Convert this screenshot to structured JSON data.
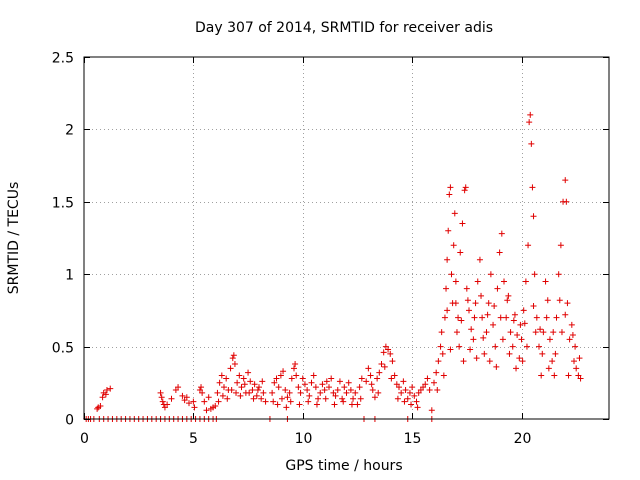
{
  "chart_data": {
    "type": "scatter",
    "title": "Day 307 of 2014, SRMTID for receiver adis",
    "xlabel": "GPS time / hours",
    "ylabel": "SRMTID / TECUs",
    "xlim": [
      0,
      24
    ],
    "ylim": [
      0,
      2.5
    ],
    "xticks": [
      0,
      5,
      10,
      15,
      20
    ],
    "yticks": [
      0,
      0.5,
      1,
      1.5,
      2,
      2.5
    ],
    "xtick_labels": [
      "0",
      "5",
      "10",
      "15",
      "20"
    ],
    "ytick_labels": [
      "0",
      "0.5",
      "1",
      "1.5",
      "2",
      "2.5"
    ],
    "grid": true,
    "marker": "+",
    "series": [
      {
        "name": "SRMTID",
        "color": "#e00000",
        "points": [
          [
            0.1,
            0
          ],
          [
            0.2,
            0
          ],
          [
            0.3,
            0
          ],
          [
            0.45,
            0
          ],
          [
            0.6,
            0.07
          ],
          [
            0.65,
            0.08
          ],
          [
            0.75,
            0.09
          ],
          [
            0.85,
            0.15
          ],
          [
            0.9,
            0.18
          ],
          [
            1.0,
            0.17
          ],
          [
            1.05,
            0.2
          ],
          [
            1.2,
            0.21
          ],
          [
            0.7,
            0
          ],
          [
            0.9,
            0
          ],
          [
            1.1,
            0
          ],
          [
            1.3,
            0
          ],
          [
            1.5,
            0
          ],
          [
            1.7,
            0
          ],
          [
            1.9,
            0
          ],
          [
            2.1,
            0
          ],
          [
            2.3,
            0
          ],
          [
            2.5,
            0
          ],
          [
            2.7,
            0
          ],
          [
            2.9,
            0
          ],
          [
            3.1,
            0
          ],
          [
            3.3,
            0
          ],
          [
            3.5,
            0
          ],
          [
            3.7,
            0
          ],
          [
            3.9,
            0
          ],
          [
            4.1,
            0
          ],
          [
            4.3,
            0
          ],
          [
            4.5,
            0
          ],
          [
            4.7,
            0
          ],
          [
            4.9,
            0
          ],
          [
            5.1,
            0
          ],
          [
            5.3,
            0
          ],
          [
            5.5,
            0
          ],
          [
            5.7,
            0
          ],
          [
            5.9,
            0
          ],
          [
            6.05,
            0
          ],
          [
            8.5,
            0
          ],
          [
            9.3,
            0
          ],
          [
            12.8,
            0
          ],
          [
            13.3,
            0
          ],
          [
            14.8,
            0
          ],
          [
            15.9,
            0
          ],
          [
            3.5,
            0.18
          ],
          [
            3.55,
            0.15
          ],
          [
            3.6,
            0.12
          ],
          [
            3.65,
            0.1
          ],
          [
            3.7,
            0.08
          ],
          [
            3.8,
            0.1
          ],
          [
            4.0,
            0.14
          ],
          [
            4.2,
            0.2
          ],
          [
            4.3,
            0.22
          ],
          [
            4.5,
            0.16
          ],
          [
            4.6,
            0.13
          ],
          [
            4.7,
            0.15
          ],
          [
            4.8,
            0.11
          ],
          [
            5.0,
            0.12
          ],
          [
            5.05,
            0.08
          ],
          [
            5.3,
            0.2
          ],
          [
            5.35,
            0.22
          ],
          [
            5.4,
            0.18
          ],
          [
            5.5,
            0.12
          ],
          [
            5.6,
            0.06
          ],
          [
            5.7,
            0.15
          ],
          [
            5.8,
            0.07
          ],
          [
            5.9,
            0.08
          ],
          [
            6.0,
            0.09
          ],
          [
            6.1,
            0.18
          ],
          [
            6.2,
            0.25
          ],
          [
            6.3,
            0.3
          ],
          [
            6.4,
            0.22
          ],
          [
            6.5,
            0.28
          ],
          [
            6.6,
            0.2
          ],
          [
            6.7,
            0.35
          ],
          [
            6.8,
            0.42
          ],
          [
            6.85,
            0.44
          ],
          [
            6.9,
            0.38
          ],
          [
            7.0,
            0.25
          ],
          [
            7.1,
            0.3
          ],
          [
            7.2,
            0.22
          ],
          [
            7.3,
            0.28
          ],
          [
            7.4,
            0.18
          ],
          [
            7.5,
            0.32
          ],
          [
            7.6,
            0.26
          ],
          [
            7.7,
            0.2
          ],
          [
            7.8,
            0.24
          ],
          [
            7.9,
            0.16
          ],
          [
            8.0,
            0.22
          ],
          [
            8.1,
            0.14
          ],
          [
            8.2,
            0.18
          ],
          [
            8.3,
            0.12
          ],
          [
            6.15,
            0.12
          ],
          [
            6.35,
            0.16
          ],
          [
            6.55,
            0.14
          ],
          [
            6.75,
            0.2
          ],
          [
            6.95,
            0.18
          ],
          [
            7.15,
            0.16
          ],
          [
            7.35,
            0.24
          ],
          [
            7.55,
            0.18
          ],
          [
            7.75,
            0.14
          ],
          [
            7.95,
            0.2
          ],
          [
            8.15,
            0.26
          ],
          [
            8.6,
            0.18
          ],
          [
            8.7,
            0.25
          ],
          [
            8.8,
            0.28
          ],
          [
            8.9,
            0.22
          ],
          [
            9.0,
            0.3
          ],
          [
            9.1,
            0.33
          ],
          [
            9.2,
            0.2
          ],
          [
            9.3,
            0.15
          ],
          [
            9.4,
            0.18
          ],
          [
            9.5,
            0.28
          ],
          [
            9.6,
            0.35
          ],
          [
            9.65,
            0.38
          ],
          [
            9.7,
            0.3
          ],
          [
            9.8,
            0.22
          ],
          [
            9.9,
            0.18
          ],
          [
            10.0,
            0.28
          ],
          [
            10.1,
            0.24
          ],
          [
            10.2,
            0.2
          ],
          [
            10.3,
            0.16
          ],
          [
            10.4,
            0.25
          ],
          [
            10.5,
            0.3
          ],
          [
            10.6,
            0.22
          ],
          [
            10.7,
            0.14
          ],
          [
            10.8,
            0.18
          ],
          [
            10.9,
            0.24
          ],
          [
            11.0,
            0.2
          ],
          [
            11.1,
            0.26
          ],
          [
            11.2,
            0.22
          ],
          [
            11.3,
            0.28
          ],
          [
            11.4,
            0.18
          ],
          [
            11.5,
            0.16
          ],
          [
            11.6,
            0.2
          ],
          [
            11.7,
            0.26
          ],
          [
            11.8,
            0.14
          ],
          [
            11.9,
            0.22
          ],
          [
            12.0,
            0.18
          ],
          [
            12.1,
            0.25
          ],
          [
            12.2,
            0.2
          ],
          [
            12.3,
            0.14
          ],
          [
            12.4,
            0.18
          ],
          [
            12.5,
            0.1
          ],
          [
            12.6,
            0.22
          ],
          [
            12.7,
            0.28
          ],
          [
            8.65,
            0.12
          ],
          [
            8.85,
            0.1
          ],
          [
            9.05,
            0.14
          ],
          [
            9.25,
            0.08
          ],
          [
            9.45,
            0.12
          ],
          [
            9.85,
            0.1
          ],
          [
            10.25,
            0.12
          ],
          [
            10.65,
            0.1
          ],
          [
            11.05,
            0.14
          ],
          [
            11.45,
            0.1
          ],
          [
            11.85,
            0.12
          ],
          [
            12.25,
            0.1
          ],
          [
            12.65,
            0.14
          ],
          [
            12.9,
            0.26
          ],
          [
            13.0,
            0.35
          ],
          [
            13.1,
            0.3
          ],
          [
            13.2,
            0.2
          ],
          [
            13.3,
            0.15
          ],
          [
            13.4,
            0.28
          ],
          [
            13.5,
            0.32
          ],
          [
            13.6,
            0.38
          ],
          [
            13.7,
            0.46
          ],
          [
            13.8,
            0.5
          ],
          [
            13.9,
            0.48
          ],
          [
            14.0,
            0.45
          ],
          [
            14.1,
            0.4
          ],
          [
            14.2,
            0.3
          ],
          [
            14.3,
            0.24
          ],
          [
            14.4,
            0.22
          ],
          [
            14.5,
            0.18
          ],
          [
            14.6,
            0.26
          ],
          [
            14.7,
            0.2
          ],
          [
            14.8,
            0.14
          ],
          [
            14.9,
            0.18
          ],
          [
            15.0,
            0.22
          ],
          [
            15.1,
            0.16
          ],
          [
            15.2,
            0.12
          ],
          [
            15.3,
            0.18
          ],
          [
            15.4,
            0.2
          ],
          [
            15.5,
            0.22
          ],
          [
            15.6,
            0.24
          ],
          [
            15.7,
            0.28
          ],
          [
            15.8,
            0.2
          ],
          [
            15.9,
            0.06
          ],
          [
            16.0,
            0.25
          ],
          [
            13.15,
            0.24
          ],
          [
            13.45,
            0.18
          ],
          [
            13.75,
            0.36
          ],
          [
            14.05,
            0.28
          ],
          [
            14.35,
            0.14
          ],
          [
            14.65,
            0.12
          ],
          [
            14.95,
            0.1
          ],
          [
            15.25,
            0.08
          ],
          [
            16.1,
            0.32
          ],
          [
            16.2,
            0.4
          ],
          [
            16.3,
            0.5
          ],
          [
            16.35,
            0.6
          ],
          [
            16.4,
            0.45
          ],
          [
            16.5,
            0.7
          ],
          [
            16.55,
            0.9
          ],
          [
            16.6,
            1.1
          ],
          [
            16.65,
            1.3
          ],
          [
            16.7,
            1.55
          ],
          [
            16.75,
            1.6
          ],
          [
            16.8,
            1.0
          ],
          [
            16.85,
            0.8
          ],
          [
            16.9,
            1.2
          ],
          [
            16.95,
            1.42
          ],
          [
            17.0,
            0.95
          ],
          [
            17.05,
            0.6
          ],
          [
            17.1,
            0.7
          ],
          [
            17.2,
            1.15
          ],
          [
            17.3,
            1.35
          ],
          [
            17.4,
            1.58
          ],
          [
            17.45,
            1.6
          ],
          [
            17.5,
            0.9
          ],
          [
            17.6,
            0.75
          ],
          [
            17.7,
            0.62
          ],
          [
            17.8,
            0.55
          ],
          [
            17.9,
            0.8
          ],
          [
            18.0,
            0.95
          ],
          [
            18.1,
            1.1
          ],
          [
            18.2,
            0.7
          ],
          [
            18.3,
            0.45
          ],
          [
            18.4,
            0.6
          ],
          [
            18.5,
            0.8
          ],
          [
            18.6,
            1.0
          ],
          [
            18.7,
            0.65
          ],
          [
            18.8,
            0.5
          ],
          [
            18.9,
            0.9
          ],
          [
            19.0,
            1.15
          ],
          [
            19.1,
            1.28
          ],
          [
            19.2,
            0.95
          ],
          [
            19.3,
            0.7
          ],
          [
            19.4,
            0.85
          ],
          [
            19.5,
            0.6
          ],
          [
            19.6,
            0.5
          ],
          [
            19.7,
            0.72
          ],
          [
            19.8,
            0.58
          ],
          [
            19.9,
            0.42
          ],
          [
            20.0,
            0.55
          ],
          [
            20.1,
            0.75
          ],
          [
            20.2,
            0.95
          ],
          [
            20.3,
            1.2
          ],
          [
            20.35,
            2.05
          ],
          [
            20.4,
            2.1
          ],
          [
            20.45,
            1.9
          ],
          [
            20.5,
            1.6
          ],
          [
            20.55,
            1.4
          ],
          [
            20.6,
            1.0
          ],
          [
            20.7,
            0.7
          ],
          [
            20.8,
            0.5
          ],
          [
            20.9,
            0.3
          ],
          [
            21.0,
            0.6
          ],
          [
            21.1,
            0.95
          ],
          [
            21.2,
            0.82
          ],
          [
            21.3,
            0.55
          ],
          [
            21.4,
            0.4
          ],
          [
            21.5,
            0.3
          ],
          [
            21.6,
            0.7
          ],
          [
            21.7,
            1.0
          ],
          [
            21.8,
            1.2
          ],
          [
            21.9,
            1.5
          ],
          [
            22.0,
            1.65
          ],
          [
            22.05,
            1.5
          ],
          [
            22.1,
            0.8
          ],
          [
            22.2,
            0.55
          ],
          [
            22.3,
            0.65
          ],
          [
            22.4,
            0.4
          ],
          [
            22.5,
            0.35
          ],
          [
            22.6,
            0.3
          ],
          [
            22.7,
            0.28
          ],
          [
            16.15,
            0.2
          ],
          [
            16.45,
            0.3
          ],
          [
            16.75,
            0.48
          ],
          [
            17.15,
            0.5
          ],
          [
            17.35,
            0.4
          ],
          [
            17.65,
            0.48
          ],
          [
            17.95,
            0.42
          ],
          [
            18.25,
            0.56
          ],
          [
            18.55,
            0.4
          ],
          [
            18.85,
            0.36
          ],
          [
            19.15,
            0.55
          ],
          [
            19.45,
            0.45
          ],
          [
            19.75,
            0.35
          ],
          [
            20.05,
            0.4
          ],
          [
            20.25,
            0.5
          ],
          [
            20.65,
            0.6
          ],
          [
            20.95,
            0.45
          ],
          [
            21.25,
            0.35
          ],
          [
            21.55,
            0.45
          ],
          [
            21.85,
            0.6
          ],
          [
            22.15,
            0.3
          ],
          [
            22.45,
            0.5
          ],
          [
            22.65,
            0.42
          ],
          [
            16.6,
            0.75
          ],
          [
            17.0,
            0.8
          ],
          [
            17.25,
            0.68
          ],
          [
            17.55,
            0.82
          ],
          [
            17.85,
            0.7
          ],
          [
            18.15,
            0.85
          ],
          [
            18.45,
            0.72
          ],
          [
            18.75,
            0.78
          ],
          [
            19.05,
            0.7
          ],
          [
            19.35,
            0.82
          ],
          [
            19.65,
            0.68
          ],
          [
            19.95,
            0.65
          ],
          [
            20.15,
            0.66
          ],
          [
            20.55,
            0.78
          ],
          [
            20.85,
            0.62
          ],
          [
            21.15,
            0.7
          ],
          [
            21.45,
            0.6
          ],
          [
            21.75,
            0.82
          ],
          [
            22.0,
            0.72
          ],
          [
            22.35,
            0.58
          ]
        ]
      }
    ]
  }
}
